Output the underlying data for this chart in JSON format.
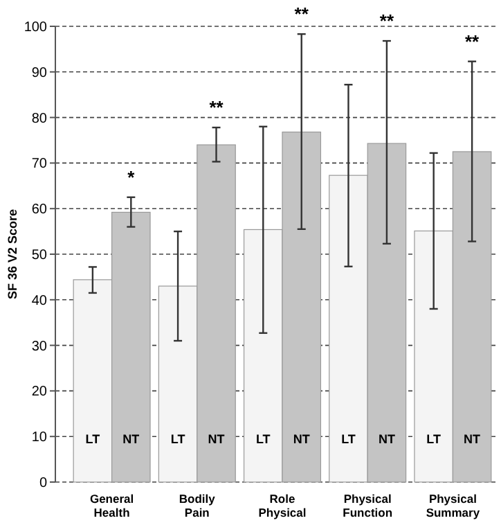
{
  "chart_data": {
    "type": "bar",
    "ylabel": "SF 36 V2 Score",
    "categories": [
      "General Health",
      "Bodily Pain",
      "Role Physical",
      "Physical Function",
      "Physical Summary"
    ],
    "series": [
      {
        "name": "LT",
        "color": "#f4f4f4",
        "values": [
          44.4,
          43,
          55.4,
          67.3,
          55.1
        ],
        "errors": [
          [
            41.5,
            47.2
          ],
          [
            31,
            55
          ],
          [
            32.7,
            78
          ],
          [
            47.3,
            87.2
          ],
          [
            38,
            72.2
          ]
        ]
      },
      {
        "name": "NT",
        "color": "#c4c4c4",
        "values": [
          59.2,
          74,
          76.8,
          74.3,
          72.5
        ],
        "errors": [
          [
            56,
            62.5
          ],
          [
            70.3,
            77.8
          ],
          [
            55.5,
            98.3
          ],
          [
            52.3,
            96.8
          ],
          [
            52.8,
            92.3
          ]
        ]
      }
    ],
    "ylim": [
      0,
      100
    ],
    "yticks": [
      0,
      10,
      20,
      30,
      40,
      50,
      60,
      70,
      80,
      90,
      100
    ],
    "grid": "y",
    "annotations": [
      "*",
      "**",
      "**",
      "**",
      "**"
    ]
  }
}
